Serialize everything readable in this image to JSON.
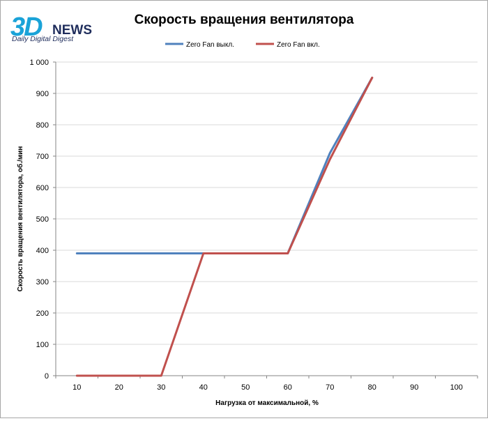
{
  "logo": {
    "main": "3D",
    "suffix": "NEWS",
    "tagline": "Daily Digital Digest",
    "color_3d": "#1aa3d8",
    "color_text": "#1f2d5c"
  },
  "colors": {
    "series_off": "#4f81bd",
    "series_on": "#c0504d",
    "gridline": "#d9d9d9",
    "axis": "#868686",
    "text": "#000000"
  },
  "chart_data": {
    "type": "line",
    "title": "Скорость вращения вентилятора",
    "xlabel": "Нагрузка  от максимальной,  %",
    "ylabel": "Скорость  вращения  вентилятора,  об./мин",
    "x": [
      10,
      20,
      30,
      40,
      50,
      60,
      70,
      80,
      90,
      100
    ],
    "x_tick_labels": [
      "10",
      "20",
      "30",
      "40",
      "50",
      "60",
      "70",
      "80",
      "90",
      "100"
    ],
    "ylim": [
      0,
      1000
    ],
    "y_tick_values": [
      0,
      100,
      200,
      300,
      400,
      500,
      600,
      700,
      800,
      900,
      1000
    ],
    "y_tick_labels": [
      "0",
      "100",
      "200",
      "300",
      "400",
      "500",
      "600",
      "700",
      "800",
      "900",
      "1 000"
    ],
    "grid": "horizontal",
    "legend_position": "top",
    "series": [
      {
        "name": "Zero  Fan выкл.",
        "color": "#4f81bd",
        "values": [
          390,
          390,
          390,
          390,
          390,
          390,
          710,
          950,
          null,
          null
        ]
      },
      {
        "name": "Zero  Fan вкл.",
        "color": "#c0504d",
        "values": [
          0,
          0,
          0,
          390,
          390,
          390,
          690,
          950,
          null,
          null
        ]
      }
    ]
  }
}
